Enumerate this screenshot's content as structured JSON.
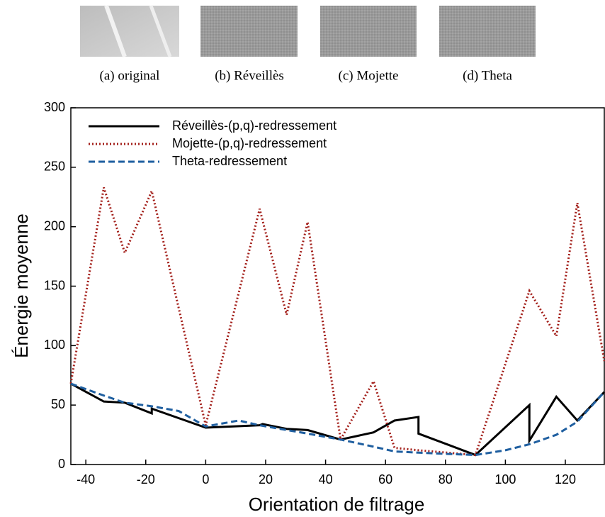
{
  "panels": [
    {
      "caption": "(a) original"
    },
    {
      "caption": "(b) Réveillès"
    },
    {
      "caption": "(c) Mojette"
    },
    {
      "caption": "(d) Theta"
    }
  ],
  "chart_data": {
    "type": "line",
    "xlabel": "Orientation de filtrage",
    "ylabel": "Énergie moyenne",
    "xlim": [
      -45,
      133
    ],
    "ylim": [
      0,
      300
    ],
    "xticks": [
      -40,
      -20,
      0,
      20,
      40,
      60,
      80,
      100,
      120
    ],
    "yticks": [
      0,
      50,
      100,
      150,
      200,
      250,
      300
    ],
    "legend": "upper-left",
    "series": [
      {
        "name": "Réveillès-(p,q)-redressement",
        "color": "#000000",
        "style": "solid",
        "x": [
          -45,
          -34,
          -27,
          -18,
          -18,
          0,
          18,
          19,
          27,
          34,
          45,
          56,
          63,
          71,
          71,
          90,
          108,
          108,
          117,
          124,
          133
        ],
        "values": [
          68,
          53,
          52,
          43,
          47,
          31,
          33,
          34,
          30,
          29,
          21,
          27,
          37,
          40,
          26,
          8,
          50,
          20,
          57,
          37,
          61
        ]
      },
      {
        "name": "Mojette-(p,q)-redressement",
        "color": "#a31f1a",
        "style": "dotted",
        "x": [
          -45,
          -34,
          -27,
          -18,
          0,
          18,
          27,
          34,
          45,
          56,
          63,
          71,
          90,
          108,
          117,
          124,
          133
        ],
        "values": [
          68,
          233,
          178,
          230,
          33,
          215,
          126,
          204,
          21,
          70,
          14,
          12,
          8,
          146,
          108,
          220,
          87
        ]
      },
      {
        "name": "Theta-redressement",
        "color": "#1f5fa0",
        "style": "dashed",
        "x": [
          -45,
          -34,
          -27,
          -18,
          -9,
          0,
          11,
          18,
          27,
          34,
          45,
          56,
          63,
          71,
          80,
          90,
          100,
          108,
          117,
          124,
          133
        ],
        "values": [
          68,
          58,
          52,
          49,
          45,
          32,
          37,
          33,
          29,
          26,
          21,
          15,
          11,
          10,
          9,
          8,
          12,
          17,
          25,
          36,
          61
        ]
      }
    ]
  }
}
